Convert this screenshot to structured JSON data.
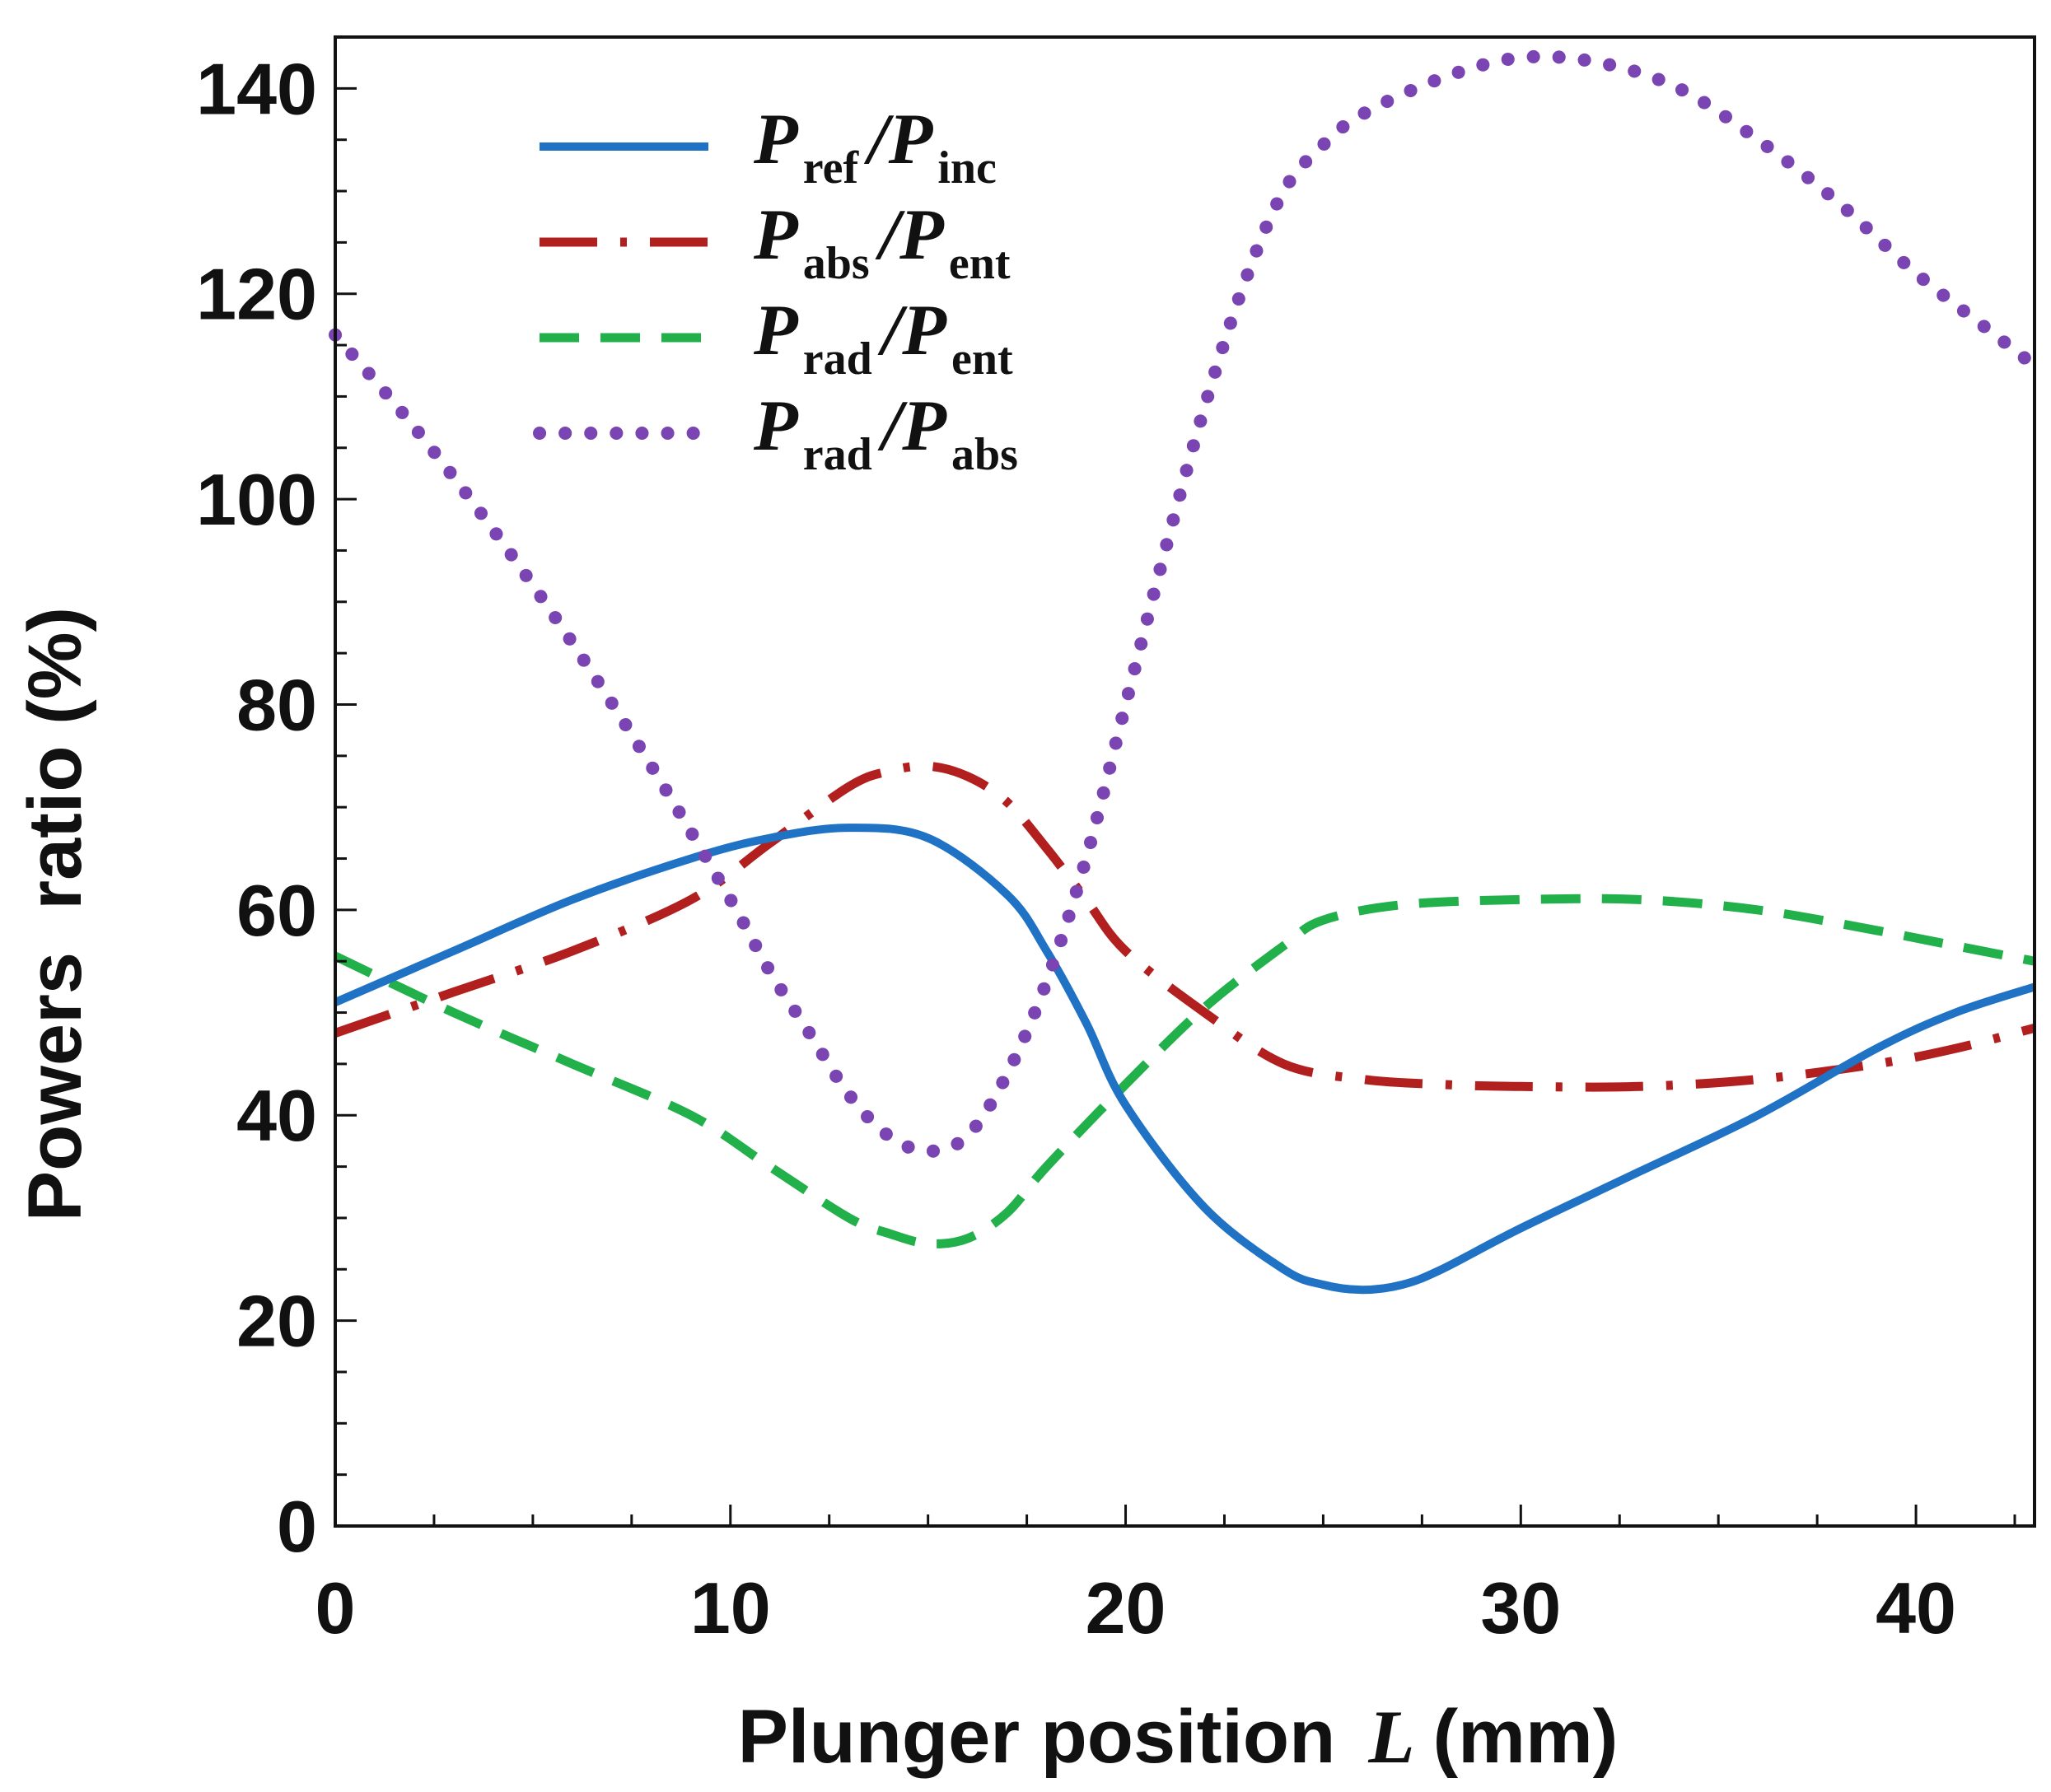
{
  "chart_data": {
    "type": "line",
    "title": "",
    "xlabel": "Plunger position",
    "xlabel_var": "L",
    "xlabel_unit": "(mm)",
    "ylabel": "Powers  ratio (%)",
    "xlim": [
      0,
      43
    ],
    "ylim": [
      0,
      145
    ],
    "xticks": [
      0,
      10,
      20,
      30,
      40
    ],
    "yticks": [
      0,
      20,
      40,
      60,
      80,
      100,
      120,
      140
    ],
    "x_minor_step": 2.5,
    "y_minor_step": 5,
    "grid": false,
    "legend_position": "top-left",
    "series": [
      {
        "name": "Pref/Pinc",
        "legend": {
          "a": "ref",
          "b": "inc"
        },
        "color": "#1f72c4",
        "style": "solid",
        "x": [
          0,
          3,
          6,
          9,
          11,
          13,
          15,
          17,
          18,
          19,
          20,
          22,
          24,
          25,
          26,
          27,
          28,
          30,
          33,
          36,
          39,
          41,
          43
        ],
        "y": [
          51,
          56,
          61,
          65,
          67,
          68,
          67,
          61.5,
          56,
          49,
          41,
          31,
          25,
          23.5,
          23,
          23.5,
          25,
          29,
          34.5,
          40,
          46.5,
          50,
          52.5
        ]
      },
      {
        "name": "Pabs/Pent",
        "legend": {
          "a": "abs",
          "b": "ent"
        },
        "color": "#b21f1f",
        "style": "dashdot",
        "x": [
          0,
          3,
          6,
          9,
          11,
          13,
          14,
          15,
          16,
          17,
          18,
          19,
          20,
          22,
          24,
          26,
          28,
          30,
          33,
          36,
          39,
          41,
          43
        ],
        "y": [
          48,
          52,
          56,
          61,
          66.5,
          72,
          73.5,
          74,
          73,
          70.5,
          66,
          61,
          56,
          50,
          45,
          43.5,
          43,
          42.8,
          42.8,
          43.5,
          45,
          46.5,
          48.5
        ]
      },
      {
        "name": "Prad/Pent",
        "legend": {
          "a": "rad",
          "b": "ent"
        },
        "color": "#22b04b",
        "style": "dashed",
        "x": [
          0,
          3,
          6,
          9,
          11,
          13,
          14,
          15,
          16,
          17,
          18,
          20,
          22,
          24,
          25,
          27,
          30,
          33,
          36,
          39,
          41,
          43
        ],
        "y": [
          55.5,
          50,
          45,
          40,
          35,
          30,
          28.5,
          27.5,
          28,
          30.5,
          35,
          43,
          50.5,
          56.5,
          59,
          60.5,
          61,
          61,
          60,
          58,
          56.5,
          55
        ]
      },
      {
        "name": "Prad/Pabs",
        "legend": {
          "a": "rad",
          "b": "abs"
        },
        "color": "#7a44b3",
        "style": "dotted",
        "x": [
          0,
          2,
          4,
          6,
          8,
          10,
          11,
          12,
          13,
          14,
          15,
          16,
          17,
          18,
          19,
          20,
          21,
          22,
          23,
          24,
          25,
          26,
          28,
          30,
          32,
          34,
          36,
          38,
          40,
          42,
          43
        ],
        "y": [
          116,
          107,
          97,
          86,
          74,
          61,
          54,
          48,
          42,
          38,
          36.5,
          38,
          44,
          53,
          65,
          80,
          95,
          109,
          121,
          130,
          134.5,
          137.5,
          141,
          143,
          142.5,
          140,
          135,
          129,
          122,
          116,
          113
        ]
      }
    ]
  }
}
